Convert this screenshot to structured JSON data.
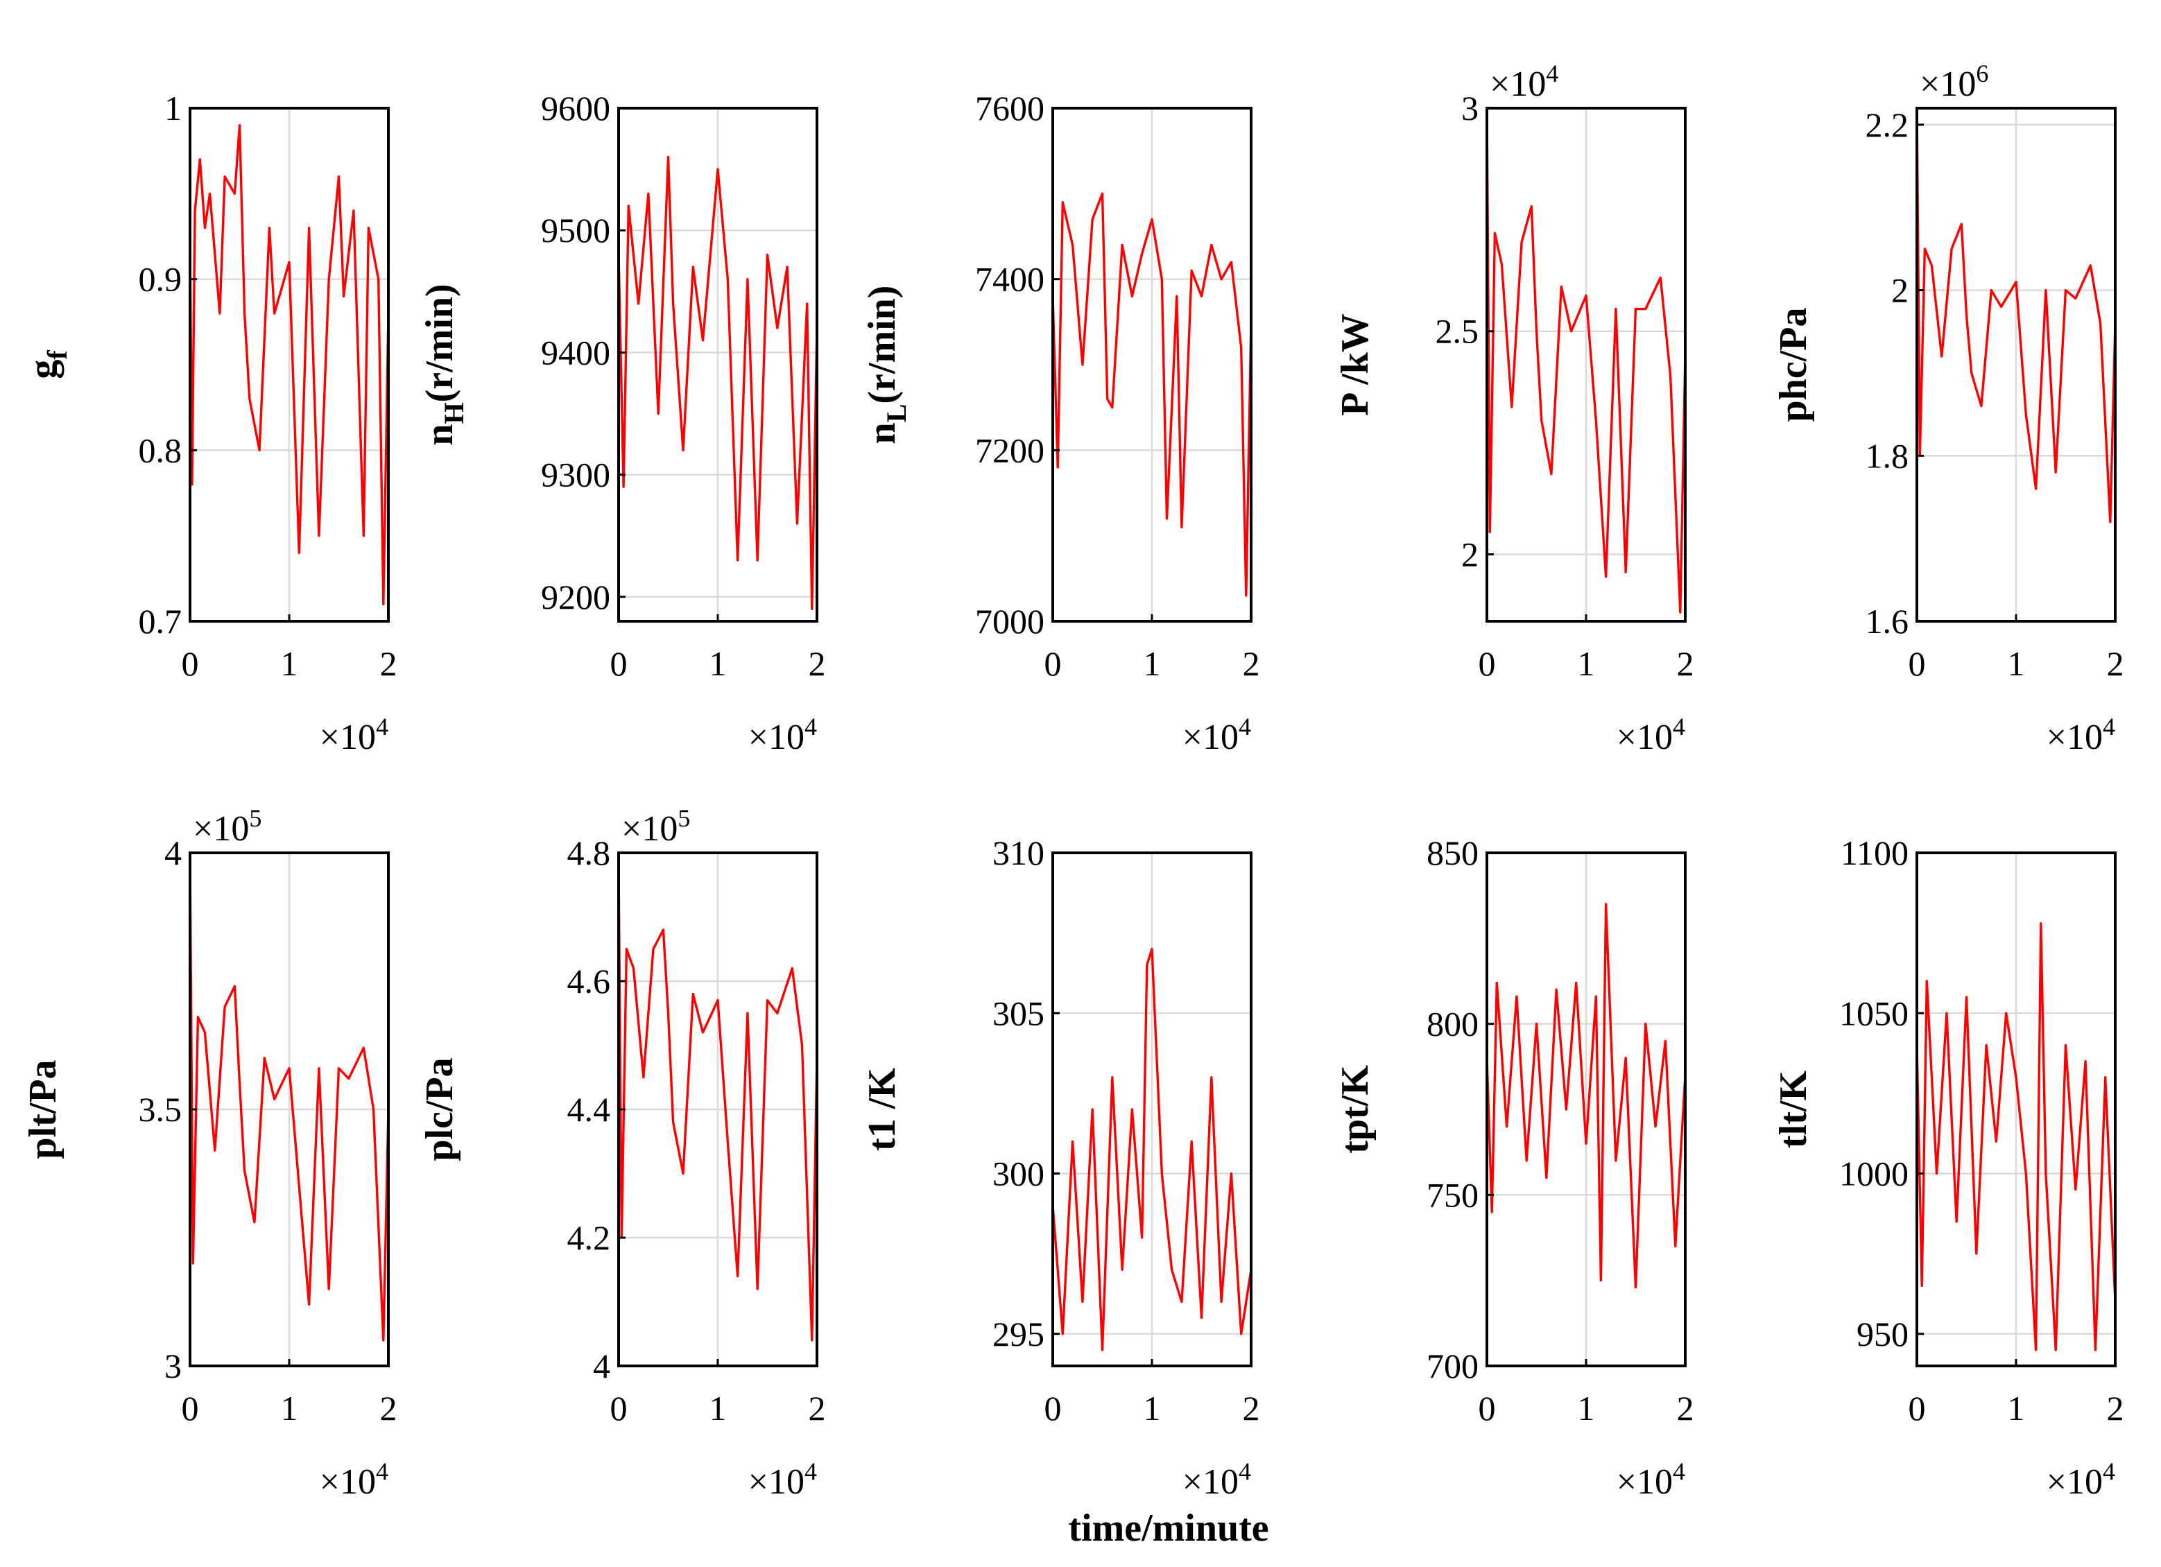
{
  "figure": {
    "xlabel": "time/minute",
    "line_color": "#ff0000",
    "grid_color": "#d9d9d9"
  },
  "chart_data": [
    {
      "type": "line",
      "name": "gf",
      "ylabel": "gf",
      "ylabel_main": "g",
      "ylabel_sub": "f",
      "xlim": [
        0,
        2
      ],
      "x_multiplier": "×10",
      "x_multiplier_exp": "4",
      "xticks": [
        "0",
        "1",
        "2"
      ],
      "ylim": [
        0.7,
        1.0
      ],
      "yticks": [
        0.7,
        0.8,
        0.9,
        1.0
      ],
      "ytick_labels": [
        "0.7",
        "0.8",
        "0.9",
        "1"
      ],
      "y_multiplier": "",
      "y_multiplier_exp": "",
      "x": [
        0,
        0.02,
        0.05,
        0.1,
        0.15,
        0.2,
        0.3,
        0.35,
        0.45,
        0.5,
        0.55,
        0.6,
        0.7,
        0.8,
        0.85,
        1.0,
        1.1,
        1.2,
        1.3,
        1.4,
        1.5,
        1.55,
        1.65,
        1.75,
        1.8,
        1.9,
        1.95,
        2.0
      ],
      "y": [
        0.92,
        0.78,
        0.94,
        0.97,
        0.93,
        0.95,
        0.88,
        0.96,
        0.95,
        0.99,
        0.88,
        0.83,
        0.8,
        0.93,
        0.88,
        0.91,
        0.74,
        0.93,
        0.75,
        0.9,
        0.96,
        0.89,
        0.94,
        0.75,
        0.93,
        0.9,
        0.71,
        0.88
      ]
    },
    {
      "type": "line",
      "name": "nH",
      "ylabel": "nH(r/min)",
      "ylabel_main": "n",
      "ylabel_sub": "H",
      "ylabel_tail": "(r/min)",
      "xlim": [
        0,
        2
      ],
      "x_multiplier": "×10",
      "x_multiplier_exp": "4",
      "xticks": [
        "0",
        "1",
        "2"
      ],
      "ylim": [
        9180,
        9600
      ],
      "yticks": [
        9200,
        9300,
        9400,
        9500,
        9600
      ],
      "ytick_labels": [
        "9200",
        "9300",
        "9400",
        "9500",
        "9600"
      ],
      "y_multiplier": "",
      "y_multiplier_exp": "",
      "x": [
        0,
        0.05,
        0.1,
        0.2,
        0.3,
        0.4,
        0.5,
        0.55,
        0.65,
        0.75,
        0.85,
        1.0,
        1.1,
        1.2,
        1.3,
        1.4,
        1.5,
        1.6,
        1.7,
        1.8,
        1.9,
        1.95,
        2.0
      ],
      "y": [
        9480,
        9290,
        9520,
        9440,
        9530,
        9350,
        9560,
        9440,
        9320,
        9470,
        9410,
        9550,
        9460,
        9230,
        9460,
        9230,
        9480,
        9420,
        9470,
        9260,
        9440,
        9190,
        9420
      ]
    },
    {
      "type": "line",
      "name": "nL",
      "ylabel": "nL(r/min)",
      "ylabel_main": "n",
      "ylabel_sub": "L",
      "ylabel_tail": "(r/min)",
      "xlim": [
        0,
        2
      ],
      "x_multiplier": "×10",
      "x_multiplier_exp": "4",
      "xticks": [
        "0",
        "1",
        "2"
      ],
      "ylim": [
        7000,
        7600
      ],
      "yticks": [
        7000,
        7200,
        7400,
        7600
      ],
      "ytick_labels": [
        "7000",
        "7200",
        "7400",
        "7600"
      ],
      "y_multiplier": "",
      "y_multiplier_exp": "",
      "x": [
        0,
        0.05,
        0.1,
        0.2,
        0.3,
        0.4,
        0.5,
        0.55,
        0.6,
        0.7,
        0.8,
        0.9,
        1.0,
        1.1,
        1.15,
        1.25,
        1.3,
        1.4,
        1.5,
        1.6,
        1.7,
        1.8,
        1.9,
        1.95,
        2.0
      ],
      "y": [
        7380,
        7180,
        7490,
        7440,
        7300,
        7470,
        7500,
        7260,
        7250,
        7440,
        7380,
        7430,
        7470,
        7400,
        7120,
        7380,
        7110,
        7410,
        7380,
        7440,
        7400,
        7420,
        7320,
        7030,
        7350
      ]
    },
    {
      "type": "line",
      "name": "P",
      "ylabel": "P /kW",
      "xlim": [
        0,
        2
      ],
      "x_multiplier": "×10",
      "x_multiplier_exp": "4",
      "xticks": [
        "0",
        "1",
        "2"
      ],
      "ylim": [
        1.85,
        3.0
      ],
      "yticks": [
        2.0,
        2.5,
        3.0
      ],
      "ytick_labels": [
        "2",
        "2.5",
        "3"
      ],
      "y_multiplier": "×10",
      "y_multiplier_exp": "4",
      "x": [
        0,
        0.03,
        0.08,
        0.15,
        0.25,
        0.35,
        0.45,
        0.5,
        0.55,
        0.65,
        0.75,
        0.85,
        1.0,
        1.1,
        1.2,
        1.3,
        1.4,
        1.5,
        1.6,
        1.75,
        1.85,
        1.95,
        2.0
      ],
      "y": [
        3.0,
        2.05,
        2.72,
        2.65,
        2.33,
        2.7,
        2.78,
        2.5,
        2.3,
        2.18,
        2.6,
        2.5,
        2.58,
        2.3,
        1.95,
        2.55,
        1.96,
        2.55,
        2.55,
        2.62,
        2.4,
        1.87,
        2.45
      ]
    },
    {
      "type": "line",
      "name": "phc",
      "ylabel": "phc/Pa",
      "xlim": [
        0,
        2
      ],
      "x_multiplier": "×10",
      "x_multiplier_exp": "4",
      "xticks": [
        "0",
        "1",
        "2"
      ],
      "ylim": [
        1.6,
        2.22
      ],
      "yticks": [
        1.6,
        1.8,
        2.0,
        2.2
      ],
      "ytick_labels": [
        "1.6",
        "1.8",
        "2",
        "2.2"
      ],
      "y_multiplier": "×10",
      "y_multiplier_exp": "6",
      "x": [
        0,
        0.03,
        0.08,
        0.15,
        0.25,
        0.35,
        0.45,
        0.5,
        0.55,
        0.65,
        0.75,
        0.85,
        1.0,
        1.1,
        1.2,
        1.3,
        1.4,
        1.5,
        1.6,
        1.75,
        1.85,
        1.95,
        2.0
      ],
      "y": [
        2.22,
        1.8,
        2.05,
        2.03,
        1.92,
        2.05,
        2.08,
        1.97,
        1.9,
        1.86,
        2.0,
        1.98,
        2.01,
        1.85,
        1.76,
        2.0,
        1.78,
        2.0,
        1.99,
        2.03,
        1.96,
        1.72,
        1.96
      ]
    },
    {
      "type": "line",
      "name": "plt",
      "ylabel": "plt/Pa",
      "xlim": [
        0,
        2
      ],
      "x_multiplier": "×10",
      "x_multiplier_exp": "4",
      "xticks": [
        "0",
        "1",
        "2"
      ],
      "ylim": [
        3.0,
        4.0
      ],
      "yticks": [
        3.0,
        3.5,
        4.0
      ],
      "ytick_labels": [
        "3",
        "3.5",
        "4"
      ],
      "y_multiplier": "×10",
      "y_multiplier_exp": "5",
      "x": [
        0,
        0.03,
        0.08,
        0.15,
        0.25,
        0.35,
        0.45,
        0.5,
        0.55,
        0.65,
        0.75,
        0.85,
        1.0,
        1.1,
        1.2,
        1.3,
        1.4,
        1.5,
        1.6,
        1.75,
        1.85,
        1.95,
        2.0
      ],
      "y": [
        3.98,
        3.2,
        3.68,
        3.65,
        3.42,
        3.7,
        3.74,
        3.55,
        3.38,
        3.28,
        3.6,
        3.52,
        3.58,
        3.35,
        3.12,
        3.58,
        3.15,
        3.58,
        3.56,
        3.62,
        3.5,
        3.05,
        3.5
      ]
    },
    {
      "type": "line",
      "name": "plc",
      "ylabel": "plc/Pa",
      "xlim": [
        0,
        2
      ],
      "x_multiplier": "×10",
      "x_multiplier_exp": "4",
      "xticks": [
        "0",
        "1",
        "2"
      ],
      "ylim": [
        4.0,
        4.8
      ],
      "yticks": [
        4.0,
        4.2,
        4.4,
        4.6,
        4.8
      ],
      "ytick_labels": [
        "4",
        "4.2",
        "4.4",
        "4.6",
        "4.8"
      ],
      "y_multiplier": "×10",
      "y_multiplier_exp": "5",
      "x": [
        0,
        0.03,
        0.08,
        0.15,
        0.25,
        0.35,
        0.45,
        0.5,
        0.55,
        0.65,
        0.75,
        0.85,
        1.0,
        1.1,
        1.2,
        1.3,
        1.4,
        1.5,
        1.6,
        1.75,
        1.85,
        1.95,
        2.0
      ],
      "y": [
        4.78,
        4.2,
        4.65,
        4.62,
        4.45,
        4.65,
        4.68,
        4.55,
        4.38,
        4.3,
        4.58,
        4.52,
        4.57,
        4.35,
        4.14,
        4.55,
        4.12,
        4.57,
        4.55,
        4.62,
        4.5,
        4.04,
        4.48
      ]
    },
    {
      "type": "line",
      "name": "t1",
      "ylabel": "t1 /K",
      "xlim": [
        0,
        2
      ],
      "x_multiplier": "×10",
      "x_multiplier_exp": "4",
      "xticks": [
        "0",
        "1",
        "2"
      ],
      "ylim": [
        294,
        310
      ],
      "yticks": [
        295,
        300,
        305,
        310
      ],
      "ytick_labels": [
        "295",
        "300",
        "305",
        "310"
      ],
      "y_multiplier": "",
      "y_multiplier_exp": "",
      "x": [
        0,
        0.1,
        0.2,
        0.3,
        0.4,
        0.5,
        0.6,
        0.7,
        0.8,
        0.9,
        0.95,
        1.0,
        1.1,
        1.2,
        1.3,
        1.4,
        1.5,
        1.6,
        1.7,
        1.8,
        1.9,
        2.0
      ],
      "y": [
        299,
        295,
        301,
        296,
        302,
        294.5,
        303,
        297,
        302,
        298,
        306.5,
        307,
        300,
        297,
        296,
        301,
        295.5,
        303,
        296,
        300,
        295,
        297
      ]
    },
    {
      "type": "line",
      "name": "tpt",
      "ylabel": "tpt/K",
      "xlim": [
        0,
        2
      ],
      "x_multiplier": "×10",
      "x_multiplier_exp": "4",
      "xticks": [
        "0",
        "1",
        "2"
      ],
      "ylim": [
        700,
        850
      ],
      "yticks": [
        700,
        750,
        800,
        850
      ],
      "ytick_labels": [
        "700",
        "750",
        "800",
        "850"
      ],
      "y_multiplier": "",
      "y_multiplier_exp": "",
      "x": [
        0,
        0.05,
        0.1,
        0.2,
        0.3,
        0.4,
        0.5,
        0.6,
        0.7,
        0.8,
        0.9,
        1.0,
        1.1,
        1.15,
        1.2,
        1.3,
        1.4,
        1.5,
        1.6,
        1.7,
        1.8,
        1.9,
        2.0
      ],
      "y": [
        790,
        745,
        812,
        770,
        808,
        760,
        800,
        755,
        810,
        775,
        812,
        765,
        808,
        725,
        835,
        760,
        790,
        723,
        800,
        770,
        795,
        735,
        785
      ]
    },
    {
      "type": "line",
      "name": "tlt",
      "ylabel": "tlt/K",
      "xlim": [
        0,
        2
      ],
      "x_multiplier": "×10",
      "x_multiplier_exp": "4",
      "xticks": [
        "0",
        "1",
        "2"
      ],
      "ylim": [
        940,
        1100
      ],
      "yticks": [
        950,
        1000,
        1050,
        1100
      ],
      "ytick_labels": [
        "950",
        "1000",
        "1050",
        "1100"
      ],
      "y_multiplier": "",
      "y_multiplier_exp": "",
      "x": [
        0,
        0.05,
        0.1,
        0.2,
        0.3,
        0.4,
        0.5,
        0.6,
        0.7,
        0.8,
        0.9,
        1.0,
        1.1,
        1.2,
        1.25,
        1.3,
        1.4,
        1.5,
        1.6,
        1.7,
        1.8,
        1.9,
        2.0
      ],
      "y": [
        1040,
        965,
        1060,
        1000,
        1050,
        985,
        1055,
        975,
        1040,
        1010,
        1050,
        1030,
        1000,
        945,
        1078,
        1000,
        945,
        1040,
        995,
        1035,
        945,
        1030,
        960
      ]
    }
  ]
}
